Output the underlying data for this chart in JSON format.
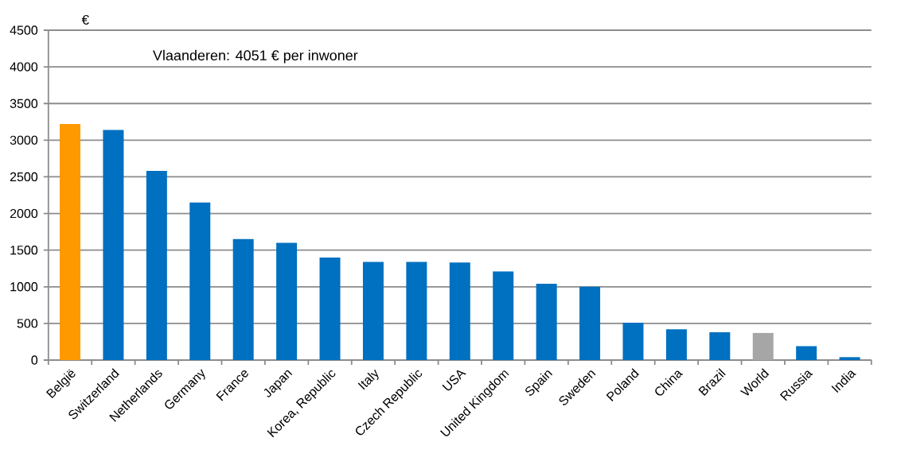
{
  "chart_data": {
    "type": "bar",
    "ylabel": "€",
    "annotations": [
      "Vlaanderen: 4051 € per inwoner"
    ],
    "categories": [
      "België",
      "Switzerland",
      "Netherlands",
      "Germany",
      "France",
      "Japan",
      "Korea, Republic",
      "Italy",
      "Czech Republic",
      "USA",
      "United Kingdom",
      "Spain",
      "Sweden",
      "Poland",
      "China",
      "Brazil",
      "World",
      "Russia",
      "India"
    ],
    "values": [
      3220,
      3140,
      2580,
      2150,
      1650,
      1600,
      1400,
      1340,
      1340,
      1330,
      1210,
      1040,
      1000,
      510,
      420,
      380,
      370,
      190,
      40
    ],
    "colors": [
      "#ff9900",
      "#0070c0",
      "#0070c0",
      "#0070c0",
      "#0070c0",
      "#0070c0",
      "#0070c0",
      "#0070c0",
      "#0070c0",
      "#0070c0",
      "#0070c0",
      "#0070c0",
      "#0070c0",
      "#0070c0",
      "#0070c0",
      "#0070c0",
      "#a6a6a6",
      "#0070c0",
      "#0070c0"
    ],
    "ylim": [
      0,
      4500
    ],
    "yticks": [
      0,
      500,
      1000,
      1500,
      2000,
      2500,
      3000,
      3500,
      4000,
      4500
    ],
    "grid": "y"
  }
}
